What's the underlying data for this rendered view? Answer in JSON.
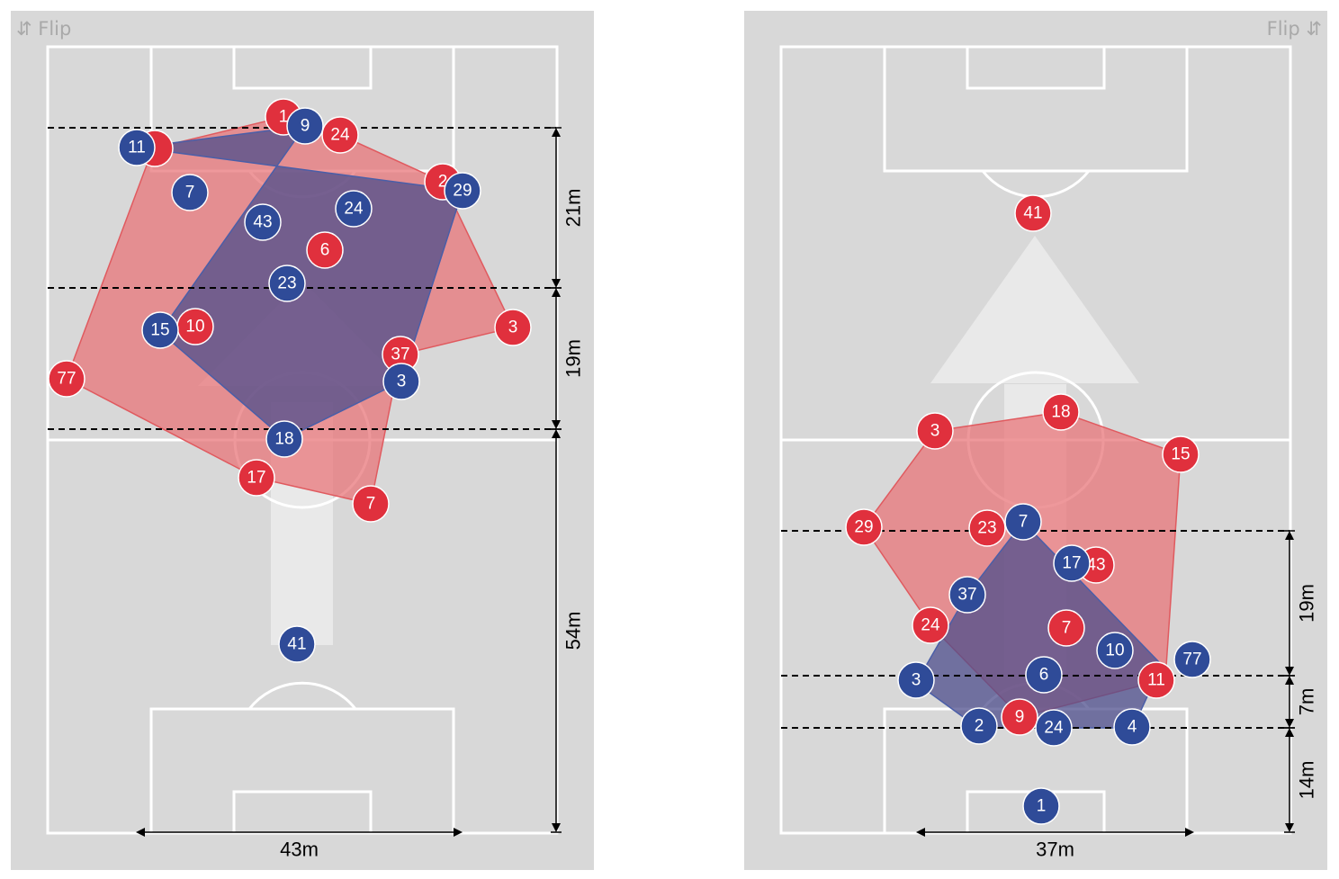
{
  "colors": {
    "background": "#d8d8d8",
    "lines": "#ffffff",
    "team_red": "#e0303d",
    "team_blue": "#2f4b98",
    "hull_red": "#e87579",
    "hull_blue": "#4e4e8c",
    "arrow": "#e9e9e9"
  },
  "panels": [
    {
      "flip_label": "⇵ Flip",
      "flip_side": "left",
      "arrow_direction": "up",
      "red_players": [
        {
          "number": "1"
        },
        {
          "number": "24"
        },
        {
          "number": "2"
        },
        {
          "number": "6"
        },
        {
          "number": "3"
        },
        {
          "number": "37"
        },
        {
          "number": "10"
        },
        {
          "number": "77"
        },
        {
          "number": "17"
        },
        {
          "number": "7"
        },
        {
          "number": ""
        }
      ],
      "blue_players": [
        {
          "number": "9"
        },
        {
          "number": "11"
        },
        {
          "number": "7"
        },
        {
          "number": "43"
        },
        {
          "number": "24"
        },
        {
          "number": "29"
        },
        {
          "number": "23"
        },
        {
          "number": "15"
        },
        {
          "number": "3"
        },
        {
          "number": "18"
        },
        {
          "number": "41"
        }
      ],
      "vertical_measures": [
        "21m",
        "19m",
        "54m"
      ],
      "horizontal_measure": "43m"
    },
    {
      "flip_label": "Flip ⇵",
      "flip_side": "right",
      "arrow_direction": "up",
      "red_players": [
        {
          "number": "41"
        },
        {
          "number": "18"
        },
        {
          "number": "3"
        },
        {
          "number": "15"
        },
        {
          "number": "29"
        },
        {
          "number": "23"
        },
        {
          "number": "43"
        },
        {
          "number": "24"
        },
        {
          "number": "7"
        },
        {
          "number": "11"
        },
        {
          "number": "9"
        }
      ],
      "blue_players": [
        {
          "number": "7"
        },
        {
          "number": "17"
        },
        {
          "number": "37"
        },
        {
          "number": "10"
        },
        {
          "number": "77"
        },
        {
          "number": "6"
        },
        {
          "number": "3"
        },
        {
          "number": "2"
        },
        {
          "number": "24"
        },
        {
          "number": "4"
        },
        {
          "number": "1"
        }
      ],
      "vertical_measures": [
        "19m",
        "7m",
        "14m"
      ],
      "horizontal_measure": "37m"
    }
  ]
}
